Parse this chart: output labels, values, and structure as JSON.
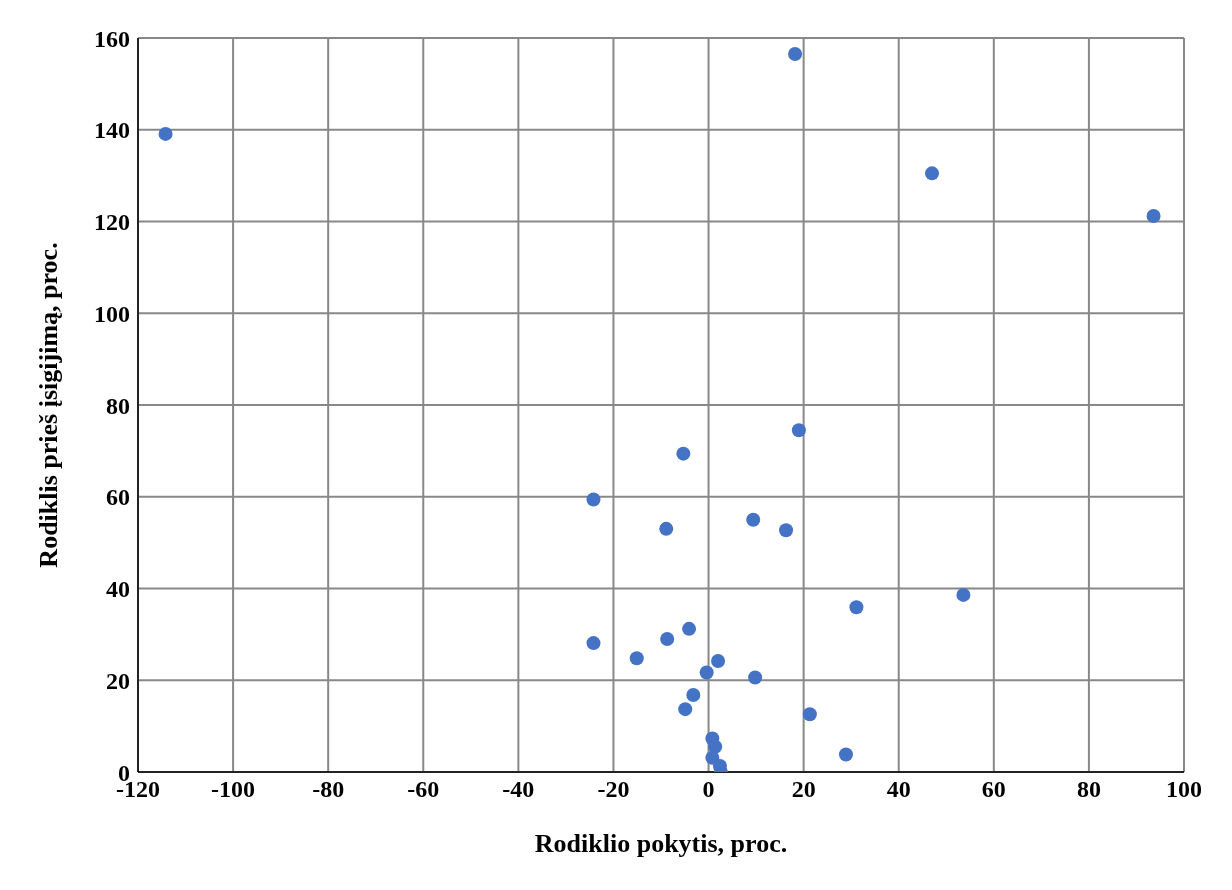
{
  "chart_data": {
    "type": "scatter",
    "xlabel": "Rodiklio pokytis, proc.",
    "ylabel": "Rodiklis prieš įsigijimą, proc.",
    "x": [
      -114.2,
      18.2,
      47.0,
      93.6,
      19.0,
      -5.3,
      -24.2,
      -8.9,
      9.4,
      16.3,
      53.6,
      31.1,
      -24.2,
      -4.1,
      -8.7,
      -15.1,
      2.0,
      -0.4,
      9.8,
      -3.2,
      -4.9,
      21.3,
      28.9,
      0.8,
      1.4,
      0.8,
      2.4,
      2.6
    ],
    "series": [
      {
        "color": "#4472c4",
        "values": [
          139.1,
          156.5,
          130.5,
          121.2,
          74.5,
          69.4,
          59.4,
          53.0,
          55.0,
          52.7,
          38.6,
          35.9,
          28.1,
          31.2,
          29.0,
          24.8,
          24.2,
          21.7,
          20.6,
          16.8,
          13.7,
          12.6,
          3.8,
          7.3,
          5.5,
          3.1,
          1.3,
          0.0
        ]
      }
    ],
    "xlim": [
      -120,
      100
    ],
    "xticks": [
      -120,
      -100,
      -80,
      -60,
      -40,
      -20,
      0,
      20,
      40,
      60,
      80,
      100
    ],
    "ylim": [
      0,
      160
    ],
    "yticks": [
      0,
      20,
      40,
      60,
      80,
      100,
      120,
      140,
      160
    ],
    "grid": true,
    "marker": "circle",
    "legend": false
  }
}
